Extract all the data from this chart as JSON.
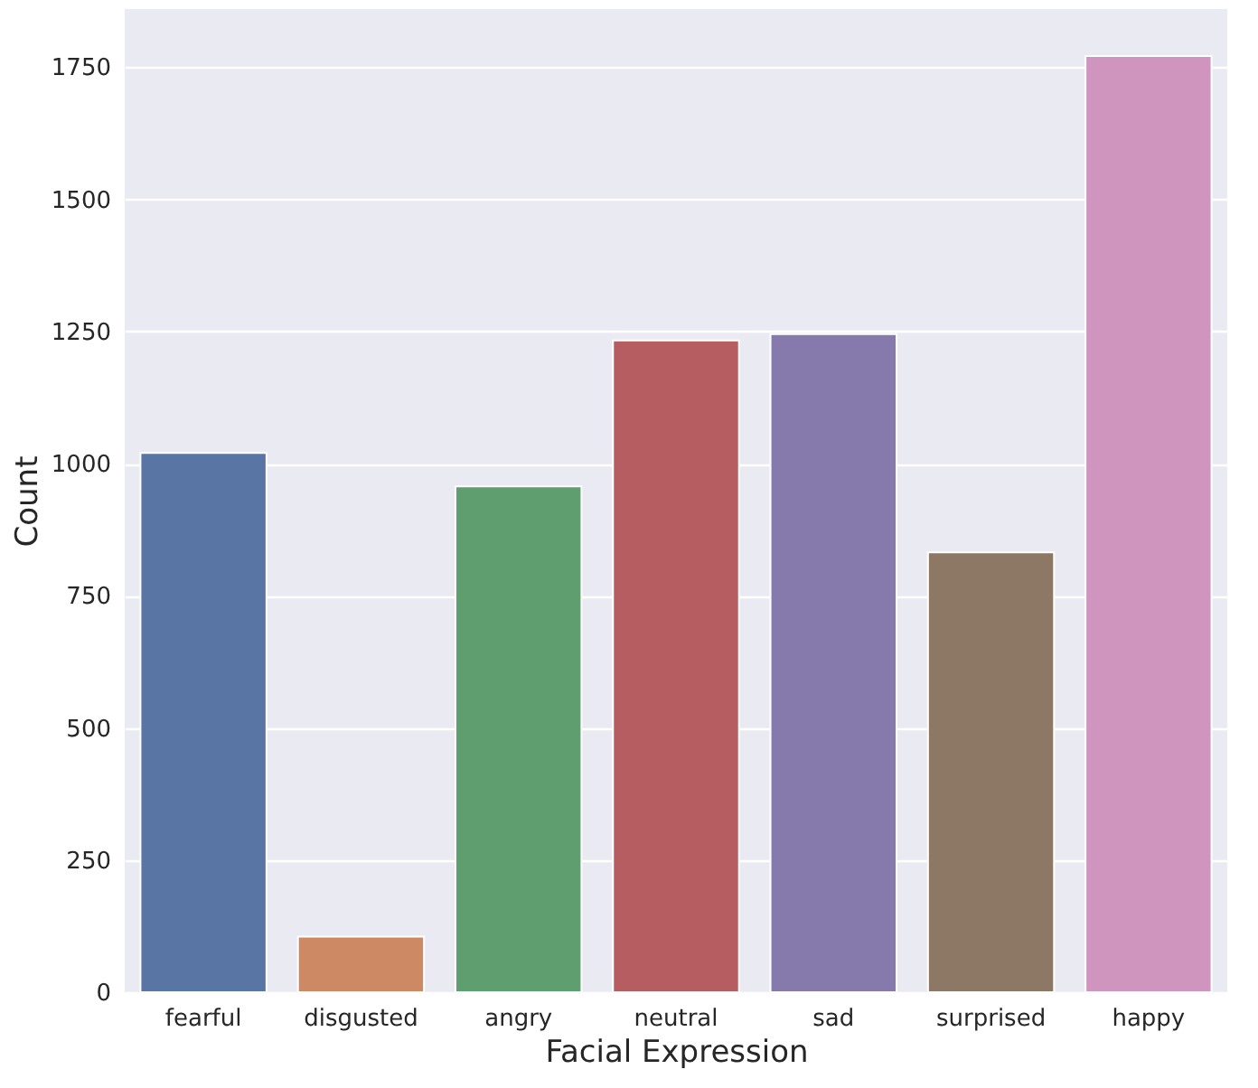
{
  "chart_data": {
    "type": "bar",
    "xlabel": "Facial Expression",
    "ylabel": "Count",
    "categories": [
      "fearful",
      "disgusted",
      "angry",
      "neutral",
      "sad",
      "surprised",
      "happy"
    ],
    "values": [
      1020,
      105,
      957,
      1233,
      1245,
      832,
      1771
    ],
    "colors": [
      "#5975a4",
      "#cc8963",
      "#5f9e6e",
      "#b55d60",
      "#857aab",
      "#8d7866",
      "#d095bf"
    ],
    "ylim": [
      0,
      1860
    ],
    "yticks": [
      0,
      250,
      500,
      750,
      1000,
      1250,
      1500,
      1750
    ],
    "grid": "y",
    "legend": false
  }
}
